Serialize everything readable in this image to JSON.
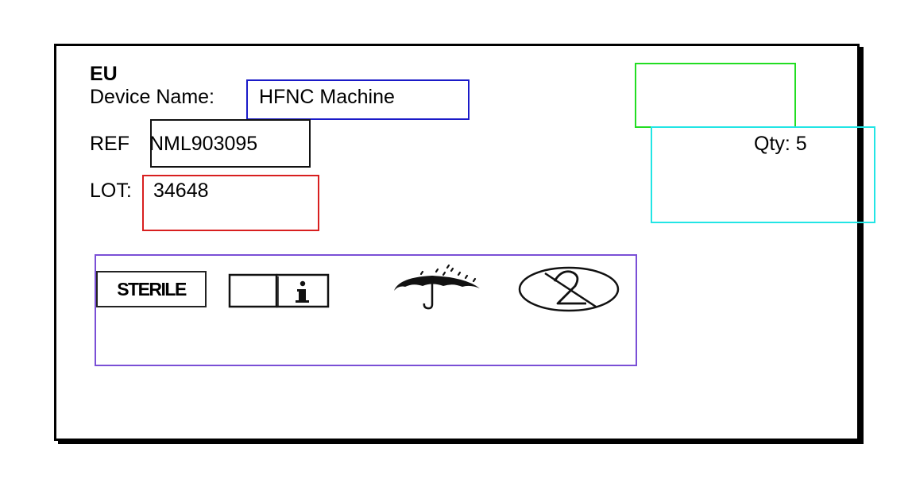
{
  "label": {
    "region": "EU",
    "device_name_label": "Device Name:",
    "device_name_value": "HFNC Machine",
    "ref_label": "REF",
    "ref_value": "NML903095",
    "lot_label": "LOT:",
    "lot_value": "34648",
    "qty": "Qty: 5"
  },
  "symbols": {
    "sterile_text": "STERILE",
    "icons": [
      "sterile-icon",
      "consult-instructions-icon",
      "keep-dry-icon",
      "do-not-reuse-icon"
    ]
  },
  "highlight_colors": {
    "device_name": "#1a1ac8",
    "ref": "#111111",
    "lot": "#d81f1f",
    "top_right": "#22dd22",
    "qty": "#22e5e5",
    "symbols": "#7a4fd6"
  }
}
